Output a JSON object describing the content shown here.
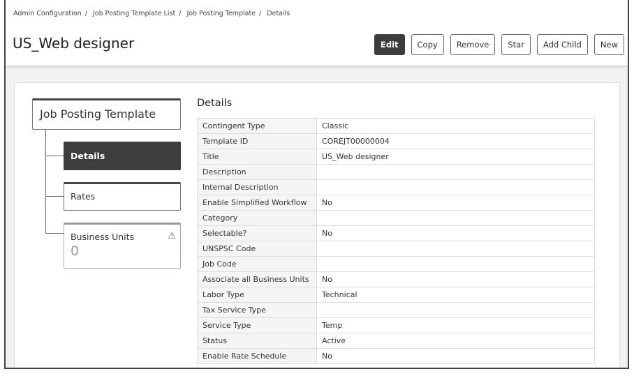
{
  "breadcrumb": [
    "Admin Configuration",
    "Job Posting Template List",
    "Job Posting Template",
    "Details"
  ],
  "title": "US_Web designer",
  "buttons": {
    "edit": "Edit",
    "copy": "Copy",
    "remove": "Remove",
    "star": "Star",
    "add_child": "Add Child",
    "new": "New"
  },
  "tree": {
    "root": "Job Posting Template",
    "details": "Details",
    "rates": "Rates",
    "business_units": "Business Units",
    "business_units_count": "0",
    "warning_icon": "⚠"
  },
  "section_title": "Details",
  "rows": [
    {
      "label": "Contingent Type",
      "value": "Classic"
    },
    {
      "label": "Template ID",
      "value": "COREJT00000004"
    },
    {
      "label": "Title",
      "value": "US_Web designer"
    },
    {
      "label": "Description",
      "value": ""
    },
    {
      "label": "Internal Description",
      "value": ""
    },
    {
      "label": "Enable Simplified Workflow",
      "value": "No"
    },
    {
      "label": "Category",
      "value": ""
    },
    {
      "label": "Selectable?",
      "value": "No"
    },
    {
      "label": "UNSPSC Code",
      "value": ""
    },
    {
      "label": "Job Code",
      "value": ""
    },
    {
      "label": "Associate all Business Units",
      "value": "No"
    },
    {
      "label": "Labor Type",
      "value": "Technical"
    },
    {
      "label": "Tax Service Type",
      "value": ""
    },
    {
      "label": "Service Type",
      "value": "Temp"
    },
    {
      "label": "Status",
      "value": "Active"
    },
    {
      "label": "Enable Rate Schedule",
      "value": "No"
    }
  ]
}
